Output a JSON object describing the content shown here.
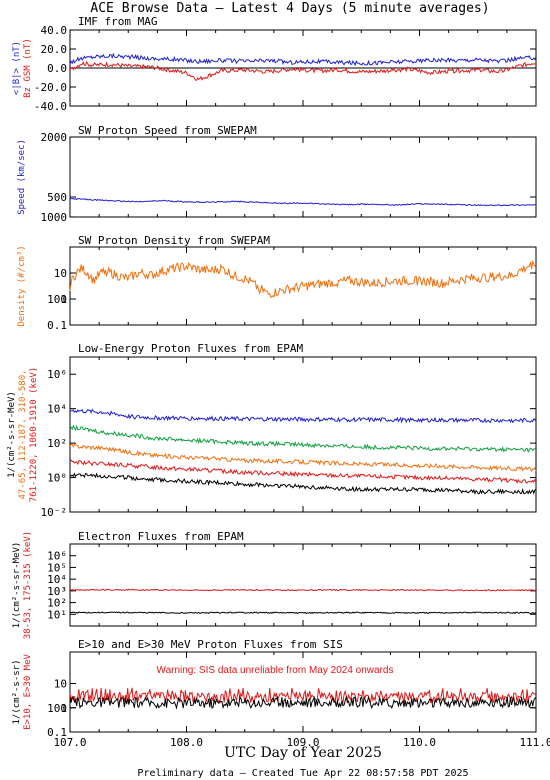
{
  "page": {
    "title": "ACE Browse Data – Latest 4 Days (5 minute averages)",
    "xlabel": "UTC Day of Year 2025",
    "footer": "Preliminary data – Created Tue Apr 22 08:57:58 PDT 2025",
    "xticks": [
      "107.0",
      "108.0",
      "109.0",
      "110.0",
      "111.0"
    ]
  },
  "colors": {
    "blue": "#2020d0",
    "red": "#e01818",
    "orange": "#f07010",
    "green": "#10a040",
    "black": "#000000",
    "axis": "#000000"
  },
  "chart_data": [
    {
      "type": "line",
      "title": "IMF from MAG",
      "ylabel_lines": [
        {
          "text": "<|B|> (nT)",
          "color": "blue"
        },
        {
          "text": "Bz GSM (nT)",
          "color": "red"
        }
      ],
      "ylim": [
        -40,
        40
      ],
      "yticks": [
        "40.0",
        "20.0",
        "0.0",
        "-20.0",
        "-40.0"
      ],
      "scale": "linear",
      "series": [
        {
          "name": "<|B|>",
          "color": "blue",
          "x": [
            107.0,
            107.1,
            107.2,
            107.35,
            107.5,
            107.7,
            107.9,
            108.1,
            108.3,
            108.5,
            108.7,
            108.9,
            109.1,
            109.3,
            109.5,
            109.7,
            109.9,
            110.1,
            110.3,
            110.5,
            110.7,
            110.85,
            111.0
          ],
          "y": [
            6,
            10,
            12,
            13,
            12,
            10,
            9,
            7,
            8,
            7,
            8,
            6,
            7,
            6,
            5,
            6,
            7,
            8,
            8,
            9,
            7,
            10,
            11
          ]
        },
        {
          "name": "Bz GSM",
          "color": "red",
          "x": [
            107.0,
            107.1,
            107.2,
            107.35,
            107.5,
            107.7,
            107.85,
            108.0,
            108.1,
            108.3,
            108.5,
            108.7,
            108.9,
            109.1,
            109.3,
            109.5,
            109.7,
            109.9,
            110.1,
            110.3,
            110.5,
            110.7,
            110.85,
            111.0
          ],
          "y": [
            -2,
            5,
            3,
            4,
            2,
            1,
            -2,
            -5,
            -12,
            -3,
            -2,
            -4,
            -1,
            -3,
            -2,
            -4,
            -3,
            -1,
            -5,
            -3,
            -2,
            -4,
            2,
            6
          ]
        }
      ]
    },
    {
      "type": "line",
      "title": "SW Proton Speed from SWEPAM",
      "ylabel_lines": [
        {
          "text": "Speed (km/sec)",
          "color": "blue"
        }
      ],
      "ylim": [
        0,
        2000
      ],
      "yticks": [
        "2000",
        "1000",
        "500"
      ],
      "scale": "linear",
      "series": [
        {
          "name": "Speed",
          "color": "blue",
          "x": [
            107.0,
            107.2,
            107.4,
            107.6,
            107.8,
            108.0,
            108.2,
            108.4,
            108.6,
            108.8,
            109.0,
            109.2,
            109.4,
            109.6,
            109.8,
            110.0,
            110.2,
            110.4,
            110.6,
            110.8,
            111.0
          ],
          "y": [
            460,
            430,
            400,
            380,
            410,
            380,
            370,
            390,
            370,
            340,
            350,
            320,
            310,
            320,
            300,
            330,
            320,
            300,
            290,
            300,
            300
          ]
        }
      ]
    },
    {
      "type": "line",
      "title": "SW Proton Density from SWEPAM",
      "ylabel_lines": [
        {
          "text": "Density (#/cm³)",
          "color": "orange"
        }
      ],
      "ylim": [
        0.1,
        100
      ],
      "yticks": [
        "100",
        "10",
        "1",
        "0.1"
      ],
      "scale": "log",
      "series": [
        {
          "name": "Density",
          "color": "orange",
          "x": [
            107.0,
            107.1,
            107.2,
            107.3,
            107.4,
            107.5,
            107.6,
            107.7,
            107.8,
            107.9,
            108.0,
            108.1,
            108.2,
            108.3,
            108.4,
            108.5,
            108.6,
            108.7,
            108.8,
            108.9,
            109.0,
            109.2,
            109.4,
            109.6,
            109.8,
            110.0,
            110.2,
            110.4,
            110.6,
            110.8,
            110.9,
            111.0
          ],
          "y": [
            3,
            15,
            5,
            12,
            8,
            6,
            10,
            8,
            12,
            15,
            18,
            14,
            12,
            15,
            8,
            6,
            3,
            1.5,
            2,
            2.5,
            3,
            4,
            5,
            4,
            5,
            5,
            4,
            6,
            7,
            8,
            15,
            25
          ]
        }
      ]
    },
    {
      "type": "line",
      "title": "Low-Energy Proton Fluxes from EPAM",
      "ylabel_lines": [
        {
          "text": "1/(cm²-s-sr-MeV)",
          "color": "black"
        },
        {
          "text": "47-65, 112-187, 310-580,",
          "color": "orange"
        },
        {
          "text": "761-1220, 1060-1910 (keV)",
          "color": "red"
        }
      ],
      "ylim": [
        0.01,
        10000000
      ],
      "yticks": [
        "10⁶",
        "10⁴",
        "10²",
        "10⁰",
        "10⁻²"
      ],
      "scale": "log",
      "series": [
        {
          "name": "47-65 keV",
          "color": "blue",
          "x": [
            107.0,
            107.3,
            107.5,
            107.7,
            108.0,
            108.5,
            109.0,
            109.5,
            110.0,
            110.5,
            111.0
          ],
          "y": [
            8000,
            6000,
            3500,
            3000,
            2800,
            2500,
            2400,
            2300,
            2200,
            2100,
            2100
          ]
        },
        {
          "name": "112-187 keV",
          "color": "green",
          "x": [
            107.0,
            107.3,
            107.5,
            107.7,
            108.0,
            108.5,
            109.0,
            109.5,
            110.0,
            110.5,
            111.0
          ],
          "y": [
            800,
            400,
            300,
            200,
            150,
            100,
            80,
            60,
            50,
            45,
            40
          ]
        },
        {
          "name": "310-580 keV",
          "color": "orange",
          "x": [
            107.0,
            107.3,
            107.5,
            107.7,
            108.0,
            108.5,
            109.0,
            109.5,
            110.0,
            110.5,
            111.0
          ],
          "y": [
            70,
            50,
            30,
            20,
            15,
            10,
            8,
            6,
            5,
            4,
            3
          ]
        },
        {
          "name": "761-1220 keV",
          "color": "red",
          "x": [
            107.0,
            107.3,
            107.5,
            107.7,
            108.0,
            108.5,
            109.0,
            109.5,
            110.0,
            110.5,
            111.0
          ],
          "y": [
            8,
            6,
            5,
            4,
            3,
            2,
            1.5,
            1.2,
            1,
            0.8,
            0.6
          ]
        },
        {
          "name": "1060-1910 keV",
          "color": "black",
          "x": [
            107.0,
            107.3,
            107.5,
            107.7,
            108.0,
            108.5,
            109.0,
            109.5,
            110.0,
            110.5,
            111.0
          ],
          "y": [
            1.5,
            1.2,
            1,
            0.8,
            0.6,
            0.4,
            0.3,
            0.2,
            0.2,
            0.15,
            0.15
          ]
        }
      ]
    },
    {
      "type": "line",
      "title": "Electron Fluxes from EPAM",
      "ylabel_lines": [
        {
          "text": "1/(cm²-s-sr-MeV)",
          "color": "black"
        },
        {
          "text": "38-53, 175-315 (keV)",
          "color": "red"
        }
      ],
      "ylim": [
        1,
        10000000
      ],
      "yticks": [
        "10⁶",
        "10⁵",
        "10⁴",
        "10³",
        "10²",
        "10¹"
      ],
      "scale": "log",
      "series": [
        {
          "name": "38-53 keV",
          "color": "red",
          "x": [
            107.0,
            107.5,
            108.0,
            108.5,
            109.0,
            109.5,
            110.0,
            110.5,
            111.0
          ],
          "y": [
            1200,
            1250,
            1150,
            1200,
            1150,
            1200,
            1150,
            1100,
            1150
          ]
        },
        {
          "name": "175-315 keV",
          "color": "black",
          "x": [
            107.0,
            107.5,
            108.0,
            108.5,
            109.0,
            109.5,
            110.0,
            110.5,
            111.0
          ],
          "y": [
            14,
            14,
            13,
            14,
            13,
            14,
            13,
            14,
            13
          ]
        }
      ]
    },
    {
      "type": "line",
      "title": "E>10 and E>30 MeV Proton Fluxes from SIS",
      "ylabel_lines": [
        {
          "text": "1/(cm²-s-sr)",
          "color": "black"
        },
        {
          "text": "E>10, E>30 MeV",
          "color": "red"
        }
      ],
      "ylim": [
        0.1,
        200
      ],
      "yticks": [
        "100",
        "10",
        "1",
        "0.1"
      ],
      "scale": "log",
      "annotation": "Warning: SIS data unreliable from May 2024 onwards",
      "series": [
        {
          "name": "E>10 MeV",
          "color": "red",
          "x": [
            107.0,
            108.0,
            109.0,
            110.0,
            111.0
          ],
          "y": [
            2.8,
            2.6,
            2.7,
            2.6,
            2.7
          ]
        },
        {
          "name": "E>30 MeV",
          "color": "black",
          "x": [
            107.0,
            108.0,
            109.0,
            110.0,
            111.0
          ],
          "y": [
            1.7,
            1.6,
            1.7,
            1.6,
            1.7
          ]
        }
      ]
    }
  ]
}
